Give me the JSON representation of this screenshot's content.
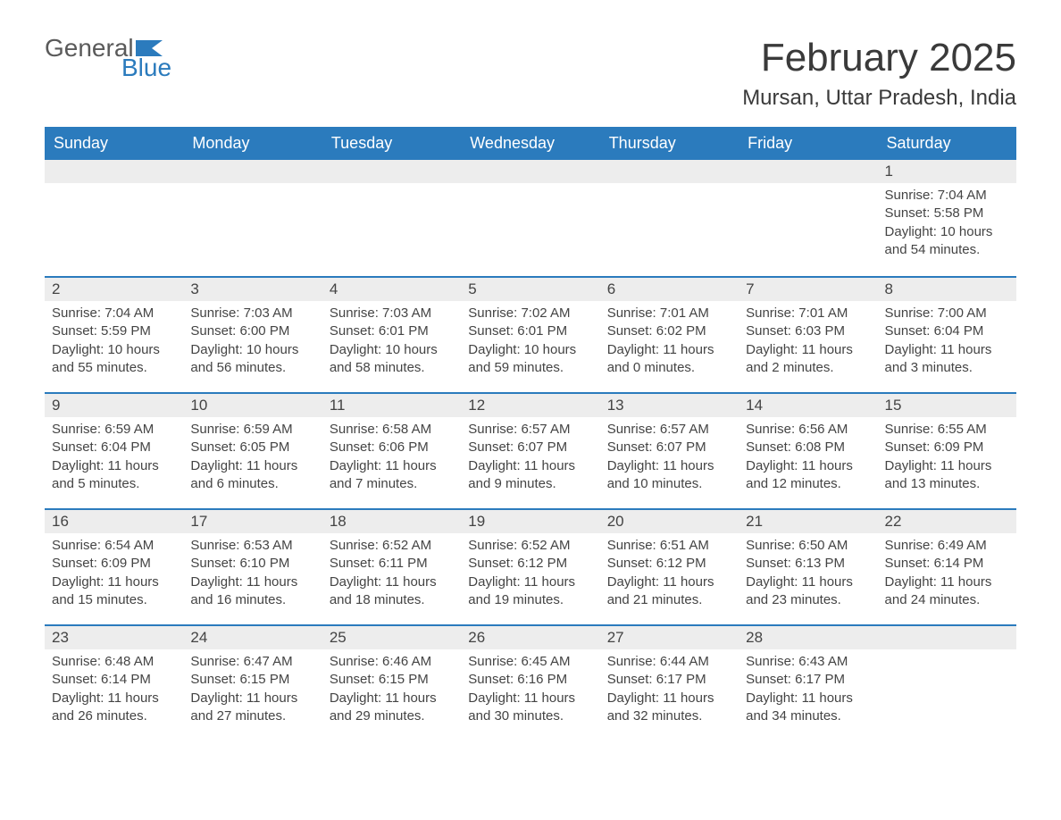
{
  "logo": {
    "general": "General",
    "blue": "Blue"
  },
  "title": "February 2025",
  "location": "Mursan, Uttar Pradesh, India",
  "colors": {
    "header_bg": "#2b7bbd",
    "header_text": "#ffffff",
    "daynum_bg": "#ededed",
    "border_top": "#2b7bbd",
    "body_text": "#444444",
    "page_bg": "#ffffff"
  },
  "day_headers": [
    "Sunday",
    "Monday",
    "Tuesday",
    "Wednesday",
    "Thursday",
    "Friday",
    "Saturday"
  ],
  "labels": {
    "sunrise": "Sunrise: ",
    "sunset": "Sunset: ",
    "daylight": "Daylight: "
  },
  "weeks": [
    [
      {
        "empty": true
      },
      {
        "empty": true
      },
      {
        "empty": true
      },
      {
        "empty": true
      },
      {
        "empty": true
      },
      {
        "empty": true
      },
      {
        "num": "1",
        "sunrise": "7:04 AM",
        "sunset": "5:58 PM",
        "daylight": "10 hours and 54 minutes."
      }
    ],
    [
      {
        "num": "2",
        "sunrise": "7:04 AM",
        "sunset": "5:59 PM",
        "daylight": "10 hours and 55 minutes."
      },
      {
        "num": "3",
        "sunrise": "7:03 AM",
        "sunset": "6:00 PM",
        "daylight": "10 hours and 56 minutes."
      },
      {
        "num": "4",
        "sunrise": "7:03 AM",
        "sunset": "6:01 PM",
        "daylight": "10 hours and 58 minutes."
      },
      {
        "num": "5",
        "sunrise": "7:02 AM",
        "sunset": "6:01 PM",
        "daylight": "10 hours and 59 minutes."
      },
      {
        "num": "6",
        "sunrise": "7:01 AM",
        "sunset": "6:02 PM",
        "daylight": "11 hours and 0 minutes."
      },
      {
        "num": "7",
        "sunrise": "7:01 AM",
        "sunset": "6:03 PM",
        "daylight": "11 hours and 2 minutes."
      },
      {
        "num": "8",
        "sunrise": "7:00 AM",
        "sunset": "6:04 PM",
        "daylight": "11 hours and 3 minutes."
      }
    ],
    [
      {
        "num": "9",
        "sunrise": "6:59 AM",
        "sunset": "6:04 PM",
        "daylight": "11 hours and 5 minutes."
      },
      {
        "num": "10",
        "sunrise": "6:59 AM",
        "sunset": "6:05 PM",
        "daylight": "11 hours and 6 minutes."
      },
      {
        "num": "11",
        "sunrise": "6:58 AM",
        "sunset": "6:06 PM",
        "daylight": "11 hours and 7 minutes."
      },
      {
        "num": "12",
        "sunrise": "6:57 AM",
        "sunset": "6:07 PM",
        "daylight": "11 hours and 9 minutes."
      },
      {
        "num": "13",
        "sunrise": "6:57 AM",
        "sunset": "6:07 PM",
        "daylight": "11 hours and 10 minutes."
      },
      {
        "num": "14",
        "sunrise": "6:56 AM",
        "sunset": "6:08 PM",
        "daylight": "11 hours and 12 minutes."
      },
      {
        "num": "15",
        "sunrise": "6:55 AM",
        "sunset": "6:09 PM",
        "daylight": "11 hours and 13 minutes."
      }
    ],
    [
      {
        "num": "16",
        "sunrise": "6:54 AM",
        "sunset": "6:09 PM",
        "daylight": "11 hours and 15 minutes."
      },
      {
        "num": "17",
        "sunrise": "6:53 AM",
        "sunset": "6:10 PM",
        "daylight": "11 hours and 16 minutes."
      },
      {
        "num": "18",
        "sunrise": "6:52 AM",
        "sunset": "6:11 PM",
        "daylight": "11 hours and 18 minutes."
      },
      {
        "num": "19",
        "sunrise": "6:52 AM",
        "sunset": "6:12 PM",
        "daylight": "11 hours and 19 minutes."
      },
      {
        "num": "20",
        "sunrise": "6:51 AM",
        "sunset": "6:12 PM",
        "daylight": "11 hours and 21 minutes."
      },
      {
        "num": "21",
        "sunrise": "6:50 AM",
        "sunset": "6:13 PM",
        "daylight": "11 hours and 23 minutes."
      },
      {
        "num": "22",
        "sunrise": "6:49 AM",
        "sunset": "6:14 PM",
        "daylight": "11 hours and 24 minutes."
      }
    ],
    [
      {
        "num": "23",
        "sunrise": "6:48 AM",
        "sunset": "6:14 PM",
        "daylight": "11 hours and 26 minutes."
      },
      {
        "num": "24",
        "sunrise": "6:47 AM",
        "sunset": "6:15 PM",
        "daylight": "11 hours and 27 minutes."
      },
      {
        "num": "25",
        "sunrise": "6:46 AM",
        "sunset": "6:15 PM",
        "daylight": "11 hours and 29 minutes."
      },
      {
        "num": "26",
        "sunrise": "6:45 AM",
        "sunset": "6:16 PM",
        "daylight": "11 hours and 30 minutes."
      },
      {
        "num": "27",
        "sunrise": "6:44 AM",
        "sunset": "6:17 PM",
        "daylight": "11 hours and 32 minutes."
      },
      {
        "num": "28",
        "sunrise": "6:43 AM",
        "sunset": "6:17 PM",
        "daylight": "11 hours and 34 minutes."
      },
      {
        "empty": true
      }
    ]
  ]
}
